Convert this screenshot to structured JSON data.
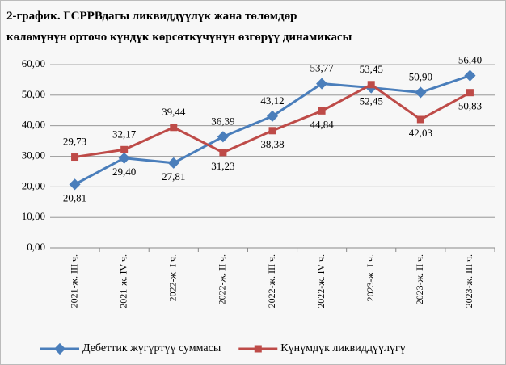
{
  "chart_data": {
    "type": "line",
    "title": [
      "2-график.  ГСРРВдагы ликвиддүүлүк  жана төлөмдөр",
      "көлөмүнүн  орточо  күндүк  көрсөткүчүнүн  өзгөрүү  динамикасы"
    ],
    "categories": [
      "2021-ж. III ч.",
      "2021-ж. IV ч.",
      "2022-ж. I ч.",
      "2022-ж. II ч.",
      "2022-ж. III ч.",
      "2022-ж. IV ч.",
      "2023-ж. I ч.",
      "2023-ж. II ч.",
      "2023-ж. III ч."
    ],
    "series": [
      {
        "name": "Дебеттик жүгүртүү суммасы",
        "color": "#4a7ebb",
        "values": [
          20.81,
          29.4,
          27.81,
          36.39,
          43.12,
          53.77,
          52.45,
          50.9,
          56.4
        ],
        "value_labels": [
          "20,81",
          "29,40",
          "27,81",
          "36,39",
          "43,12",
          "53,77",
          "52,45",
          "50,90",
          "56,40"
        ]
      },
      {
        "name": "Күнүмдүк ликвиддүүлүгү",
        "color": "#be4b48",
        "values": [
          29.73,
          32.17,
          39.44,
          31.23,
          38.38,
          44.84,
          53.45,
          42.03,
          50.83
        ],
        "value_labels": [
          "29,73",
          "32,17",
          "39,44",
          "31,23",
          "38,38",
          "44,84",
          "53,45",
          "42,03",
          "50,83"
        ]
      }
    ],
    "ylim": [
      0,
      60
    ],
    "yticks": [
      {
        "value": 0,
        "label": "0,00"
      },
      {
        "value": 10,
        "label": "10,00"
      },
      {
        "value": 20,
        "label": "20,00"
      },
      {
        "value": 30,
        "label": "30,00"
      },
      {
        "value": 40,
        "label": "40,00"
      },
      {
        "value": 50,
        "label": "50,00"
      },
      {
        "value": 60,
        "label": "60,00"
      }
    ],
    "grid": true,
    "legend": "bottom"
  }
}
